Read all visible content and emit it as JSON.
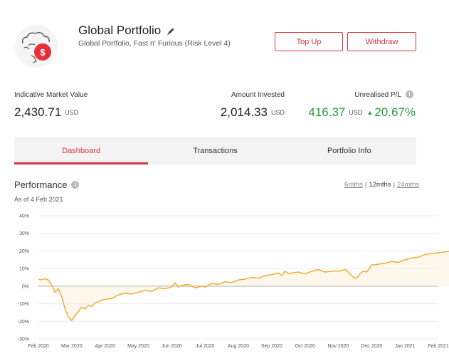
{
  "header": {
    "title": "Global Portfolio",
    "subtitle": "Global Portfolio, Fast n' Furious (Risk Level 4)",
    "topup_label": "Top Up",
    "withdraw_label": "Withdraw",
    "accent_color": "#d9363e"
  },
  "stats": {
    "market_value": {
      "label": "Indicative Market Value",
      "value": "2,430.71",
      "unit": "USD"
    },
    "invested": {
      "label": "Amount Invested",
      "value": "2,014.33",
      "unit": "USD"
    },
    "unrealised": {
      "label": "Unrealised P/L",
      "value": "416.37",
      "unit": "USD",
      "percent": "20.67%",
      "color": "#2a9d3c"
    }
  },
  "tabs": [
    {
      "label": "Dashboard",
      "active": true
    },
    {
      "label": "Transactions",
      "active": false
    },
    {
      "label": "Portfolio Info",
      "active": false
    }
  ],
  "performance": {
    "title": "Performance",
    "as_of": "As of 4 Feb 2021",
    "ranges": [
      {
        "label": "6mths",
        "selected": false
      },
      {
        "label": "12mths",
        "selected": true
      },
      {
        "label": "24mths",
        "selected": false
      }
    ]
  },
  "chart_data": {
    "type": "line",
    "title": "",
    "xlabel": "",
    "ylabel": "",
    "ylim": [
      -30,
      40
    ],
    "y_ticks": [
      "40%",
      "30%",
      "20%",
      "10%",
      "0%",
      "-10%",
      "-20%",
      "-30%"
    ],
    "x_ticks": [
      "Feb 2020",
      "Mar 2020",
      "Apr 2020",
      "May 2020",
      "Jun 2020",
      "Jul 2020",
      "Aug 2020",
      "Sep 2020",
      "Oct 2020",
      "Nov 2020",
      "Dec 2020",
      "Jan 2021",
      "Feb 2021"
    ],
    "line_color": "#f0a826",
    "grid": true,
    "series": [
      {
        "values": [
          [
            0.0,
            4.0
          ],
          [
            0.1,
            3.6
          ],
          [
            0.2,
            4.2
          ],
          [
            0.3,
            3.5
          ],
          [
            0.4,
            0.5
          ],
          [
            0.5,
            -3.5
          ],
          [
            0.6,
            -1.5
          ],
          [
            0.7,
            -6.0
          ],
          [
            0.8,
            -13.0
          ],
          [
            0.9,
            -17.5
          ],
          [
            1.0,
            -19.5
          ],
          [
            1.1,
            -16.5
          ],
          [
            1.2,
            -14.5
          ],
          [
            1.3,
            -12.0
          ],
          [
            1.4,
            -13.0
          ],
          [
            1.5,
            -11.0
          ],
          [
            1.6,
            -11.5
          ],
          [
            1.7,
            -9.5
          ],
          [
            1.8,
            -9.0
          ],
          [
            1.9,
            -8.0
          ],
          [
            2.0,
            -7.5
          ],
          [
            2.2,
            -7.0
          ],
          [
            2.4,
            -5.0
          ],
          [
            2.6,
            -4.0
          ],
          [
            2.8,
            -4.5
          ],
          [
            3.0,
            -3.5
          ],
          [
            3.2,
            -2.5
          ],
          [
            3.4,
            -3.0
          ],
          [
            3.6,
            -1.0
          ],
          [
            3.8,
            -1.5
          ],
          [
            4.0,
            -0.5
          ],
          [
            4.1,
            2.0
          ],
          [
            4.2,
            -0.5
          ],
          [
            4.3,
            0.5
          ],
          [
            4.5,
            1.0
          ],
          [
            4.7,
            -1.0
          ],
          [
            4.9,
            0.0
          ],
          [
            5.0,
            -0.5
          ],
          [
            5.2,
            1.5
          ],
          [
            5.4,
            1.0
          ],
          [
            5.6,
            2.5
          ],
          [
            5.8,
            2.0
          ],
          [
            6.0,
            3.5
          ],
          [
            6.2,
            4.0
          ],
          [
            6.4,
            5.0
          ],
          [
            6.6,
            4.5
          ],
          [
            6.8,
            6.0
          ],
          [
            7.0,
            6.5
          ],
          [
            7.2,
            7.5
          ],
          [
            7.3,
            6.0
          ],
          [
            7.4,
            8.5
          ],
          [
            7.5,
            7.0
          ],
          [
            7.6,
            7.5
          ],
          [
            7.8,
            8.0
          ],
          [
            8.0,
            7.0
          ],
          [
            8.2,
            8.5
          ],
          [
            8.4,
            9.5
          ],
          [
            8.6,
            8.0
          ],
          [
            8.8,
            8.5
          ],
          [
            9.0,
            8.5
          ],
          [
            9.2,
            9.5
          ],
          [
            9.3,
            8.0
          ],
          [
            9.45,
            5.0
          ],
          [
            9.55,
            4.5
          ],
          [
            9.65,
            7.0
          ],
          [
            9.75,
            8.5
          ],
          [
            9.85,
            8.0
          ],
          [
            10.0,
            12.0
          ],
          [
            10.2,
            12.5
          ],
          [
            10.4,
            13.0
          ],
          [
            10.6,
            14.0
          ],
          [
            10.8,
            13.5
          ],
          [
            11.0,
            15.0
          ],
          [
            11.2,
            16.0
          ],
          [
            11.4,
            16.5
          ],
          [
            11.6,
            18.0
          ],
          [
            11.8,
            18.5
          ],
          [
            12.0,
            19.0
          ],
          [
            12.2,
            19.5
          ],
          [
            12.4,
            20.0
          ],
          [
            12.5,
            18.0
          ],
          [
            12.6,
            18.5
          ],
          [
            12.8,
            20.5
          ],
          [
            12.9,
            19.5
          ],
          [
            13.0,
            20.0
          ]
        ]
      }
    ]
  }
}
